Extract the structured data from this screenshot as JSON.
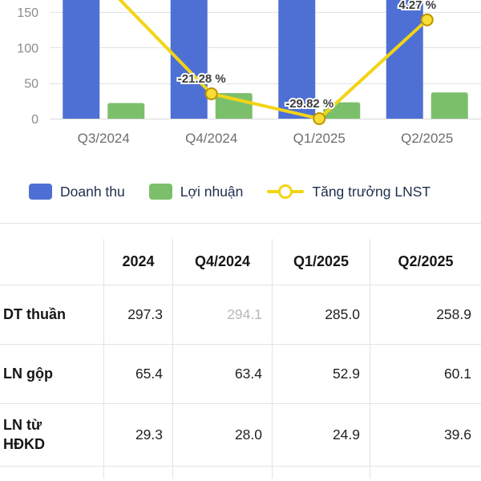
{
  "chart_data": {
    "type": "combo-bar-line",
    "categories": [
      "Q3/2024",
      "Q4/2024",
      "Q1/2025",
      "Q2/2025"
    ],
    "series": [
      {
        "name": "Doanh thu",
        "type": "bar",
        "color": "#4e70d4",
        "values": [
          297.3,
          294.1,
          285.0,
          258.9
        ]
      },
      {
        "name": "Lợi nhuận",
        "type": "bar",
        "color": "#7cbf6b",
        "values": [
          22,
          36,
          23,
          37
        ]
      },
      {
        "name": "Tăng trưởng LNST",
        "type": "line",
        "color": "#f3d414",
        "values_pct": [
          null,
          -21.28,
          -29.82,
          4.27
        ],
        "labels": [
          null,
          "-21.28 %",
          "-29.82 %",
          "4.27 %"
        ],
        "plot_values_left_axis": [
          191,
          35,
          0,
          139
        ]
      }
    ],
    "ylim": [
      0,
      150
    ],
    "y_ticks": [
      0,
      50,
      100,
      150
    ],
    "grid": true,
    "legend_position": "bottom",
    "bars_clipped_at_top": true
  },
  "legend": {
    "items": [
      {
        "label": "Doanh thu",
        "type": "bar",
        "color": "#4e70d4"
      },
      {
        "label": "Lợi nhuận",
        "type": "bar",
        "color": "#7cbf6b"
      },
      {
        "label": "Tăng trưởng LNST",
        "type": "line",
        "color": "#f3d414"
      }
    ]
  },
  "table": {
    "headers": [
      "",
      "2024",
      "Q4/2024",
      "Q1/2025",
      "Q2/2025"
    ],
    "rows": [
      {
        "label": "DT thuần",
        "values": [
          "297.3",
          "294.1",
          "285.0",
          "258.9"
        ],
        "muted": [
          false,
          true,
          false,
          false
        ]
      },
      {
        "label": "LN gộp",
        "values": [
          "65.4",
          "63.4",
          "52.9",
          "60.1"
        ],
        "muted": [
          false,
          false,
          false,
          false
        ]
      },
      {
        "label": "LN từ HĐKD",
        "values": [
          "29.3",
          "28.0",
          "24.9",
          "39.6"
        ],
        "muted": [
          false,
          false,
          false,
          false
        ]
      },
      {
        "label": "",
        "values": [
          "",
          "",
          "",
          ""
        ],
        "muted": [
          false,
          false,
          false,
          false
        ],
        "partial": true
      }
    ]
  },
  "colors": {
    "grid_line": "#e2e2e2",
    "axis_label": "#8b8b8b",
    "x_label": "#6e6e6e",
    "line_label_text": "#3c3c3c",
    "muted_value": "#b8b8b8"
  }
}
